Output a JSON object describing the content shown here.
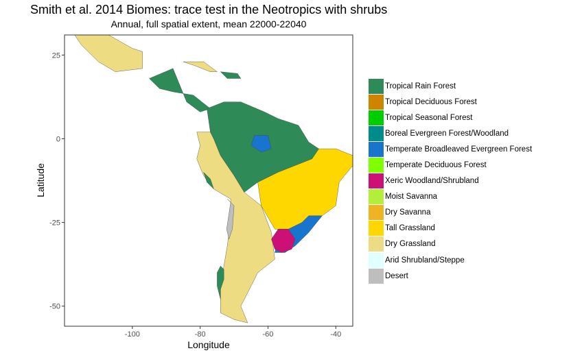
{
  "title": "Smith et al. 2014 Biomes: trace test in the Neotropics with shrubs",
  "subtitle": "Annual, full spatial extent, mean 22000-22040",
  "chart_data": {
    "type": "heatmap",
    "title": "Smith et al. 2014 Biomes: trace test in the Neotropics with shrubs",
    "subtitle": "Annual, full spatial extent, mean 22000-22040",
    "xlabel": "Longitude",
    "ylabel": "Latitude",
    "xlim": [
      -120,
      -35
    ],
    "ylim": [
      -56,
      31
    ],
    "x_ticks": [
      -100,
      -80,
      -60,
      -40
    ],
    "x_tick_labels": [
      "-100",
      "-80",
      "-60",
      "-40"
    ],
    "y_ticks": [
      25,
      0,
      -25,
      -50
    ],
    "y_tick_labels": [
      "25",
      "0",
      "-25",
      "-50"
    ],
    "grid": false,
    "legend_position": "right",
    "legend": [
      {
        "label": "Tropical Rain Forest",
        "color": "#2e8b57"
      },
      {
        "label": "Tropical Deciduous Forest",
        "color": "#cd8500"
      },
      {
        "label": "Tropical Seasonal Forest",
        "color": "#00cd00"
      },
      {
        "label": "Boreal Evergreen Forest/Woodland",
        "color": "#008b8b"
      },
      {
        "label": "Temperate Broadleaved Evergreen Forest",
        "color": "#1874cd"
      },
      {
        "label": "Temperate Deciduous Forest",
        "color": "#7fff00"
      },
      {
        "label": "Xeric Woodland/Shrubland",
        "color": "#cd1076"
      },
      {
        "label": "Moist Savanna",
        "color": "#b3ee3a"
      },
      {
        "label": "Dry Savanna",
        "color": "#eeb422"
      },
      {
        "label": "Tall Grassland",
        "color": "#ffd700"
      },
      {
        "label": "Dry Grassland",
        "color": "#eedc82"
      },
      {
        "label": "Arid Shrubland/Steppe",
        "color": "#e0ffff"
      },
      {
        "label": "Desert",
        "color": "#bebebe"
      }
    ],
    "regions": [
      {
        "biome": "Dry Grassland",
        "polygon": [
          [
            -117,
            31
          ],
          [
            -107,
            31
          ],
          [
            -100,
            27
          ],
          [
            -97,
            26
          ],
          [
            -97,
            21
          ],
          [
            -105,
            20
          ],
          [
            -110,
            23
          ],
          [
            -115,
            28
          ]
        ]
      },
      {
        "biome": "Tropical Rain Forest",
        "polygon": [
          [
            -95,
            18
          ],
          [
            -88,
            21
          ],
          [
            -86,
            16
          ],
          [
            -84,
            11
          ],
          [
            -80,
            8
          ],
          [
            -77,
            9
          ],
          [
            -82,
            13
          ],
          [
            -88,
            14
          ],
          [
            -92,
            15
          ]
        ]
      },
      {
        "biome": "Dry Grassland",
        "polygon": [
          [
            -81,
            2
          ],
          [
            -80,
            -2
          ],
          [
            -81,
            -6
          ],
          [
            -79,
            -11
          ],
          [
            -76,
            -15
          ],
          [
            -71,
            -18
          ],
          [
            -71,
            -24
          ],
          [
            -72,
            -32
          ],
          [
            -73,
            -38
          ],
          [
            -74,
            -45
          ],
          [
            -74,
            -52
          ],
          [
            -70,
            -54
          ],
          [
            -66,
            -55
          ],
          [
            -68,
            -50
          ],
          [
            -65,
            -44
          ],
          [
            -63,
            -40
          ],
          [
            -58,
            -36
          ],
          [
            -59,
            -28
          ],
          [
            -62,
            -20
          ],
          [
            -67,
            -16
          ],
          [
            -70,
            -11
          ],
          [
            -74,
            -5
          ],
          [
            -76,
            0
          ],
          [
            -77,
            2
          ]
        ]
      },
      {
        "biome": "Tropical Rain Forest",
        "polygon": [
          [
            -78,
            9
          ],
          [
            -73,
            11
          ],
          [
            -68,
            11
          ],
          [
            -61,
            8
          ],
          [
            -57,
            6
          ],
          [
            -51,
            4
          ],
          [
            -48,
            -1
          ],
          [
            -45,
            -3
          ],
          [
            -47,
            -6
          ],
          [
            -52,
            -8
          ],
          [
            -57,
            -10
          ],
          [
            -63,
            -13
          ],
          [
            -67,
            -16
          ],
          [
            -70,
            -11
          ],
          [
            -74,
            -5
          ],
          [
            -76,
            0
          ],
          [
            -77,
            2
          ]
        ]
      },
      {
        "biome": "Tall Grassland",
        "polygon": [
          [
            -45,
            -3
          ],
          [
            -40,
            -3
          ],
          [
            -35,
            -5
          ],
          [
            -35,
            -8
          ],
          [
            -39,
            -13
          ],
          [
            -40,
            -20
          ],
          [
            -44,
            -23
          ],
          [
            -48,
            -25
          ],
          [
            -53,
            -27
          ],
          [
            -58,
            -27
          ],
          [
            -62,
            -20
          ],
          [
            -63,
            -13
          ],
          [
            -57,
            -10
          ],
          [
            -52,
            -8
          ],
          [
            -47,
            -6
          ]
        ]
      },
      {
        "biome": "Temperate Broadleaved Evergreen Forest",
        "polygon": [
          [
            -48,
            -23
          ],
          [
            -44,
            -23
          ],
          [
            -48,
            -28
          ],
          [
            -52,
            -32
          ],
          [
            -55,
            -34
          ],
          [
            -58,
            -34
          ],
          [
            -57,
            -30
          ],
          [
            -54,
            -27
          ],
          [
            -50,
            -25
          ]
        ]
      },
      {
        "biome": "Xeric Woodland/Shrubland",
        "polygon": [
          [
            -57,
            -27
          ],
          [
            -54,
            -27
          ],
          [
            -52,
            -30
          ],
          [
            -53,
            -33
          ],
          [
            -56,
            -34
          ],
          [
            -58,
            -33
          ],
          [
            -59,
            -30
          ]
        ]
      },
      {
        "biome": "Temperate Broadleaved Evergreen Forest",
        "polygon": [
          [
            -64,
            1
          ],
          [
            -60,
            1
          ],
          [
            -59,
            -3
          ],
          [
            -62,
            -4
          ],
          [
            -65,
            -2
          ]
        ]
      },
      {
        "biome": "Tropical Rain Forest",
        "polygon": [
          [
            -79,
            -10
          ],
          [
            -77,
            -12
          ],
          [
            -76,
            -15
          ],
          [
            -78,
            -13
          ]
        ]
      },
      {
        "biome": "Tropical Rain Forest",
        "polygon": [
          [
            -74,
            -38
          ],
          [
            -73,
            -39
          ],
          [
            -73,
            -42
          ],
          [
            -74,
            -45
          ],
          [
            -74,
            -48
          ],
          [
            -75,
            -44
          ],
          [
            -75,
            -40
          ]
        ]
      },
      {
        "biome": "Dry Grassland",
        "polygon": [
          [
            -85,
            23
          ],
          [
            -79,
            23
          ],
          [
            -75,
            20
          ],
          [
            -77,
            20
          ],
          [
            -82,
            22
          ]
        ]
      },
      {
        "biome": "Tropical Rain Forest",
        "polygon": [
          [
            -74,
            20
          ],
          [
            -69,
            19.5
          ],
          [
            -68,
            18
          ],
          [
            -72,
            18
          ]
        ]
      },
      {
        "biome": "Desert",
        "polygon": [
          [
            -72,
            -18
          ],
          [
            -70,
            -20
          ],
          [
            -70.5,
            -27
          ],
          [
            -71.5,
            -30
          ],
          [
            -72.2,
            -27
          ],
          [
            -71,
            -19
          ]
        ]
      }
    ]
  }
}
